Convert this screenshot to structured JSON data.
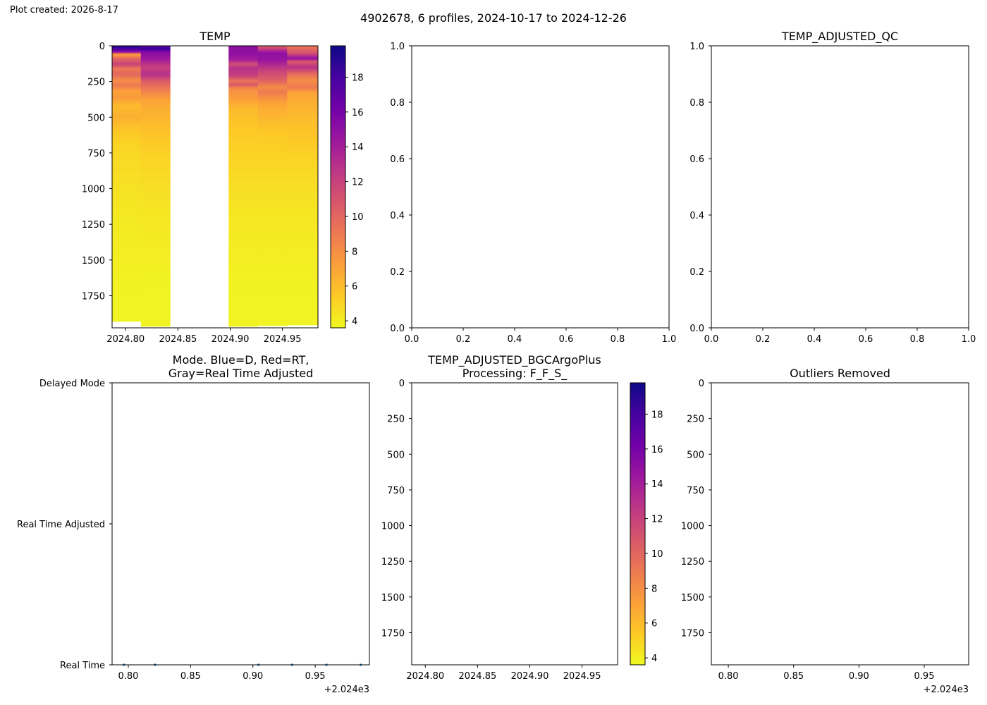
{
  "created_label": "Plot created: 2026-8-17",
  "suptitle": "4902678, 6 profiles, 2024-10-17 to 2024-12-26",
  "colormap": [
    "#f0f921",
    "#fdca26",
    "#fb9f3a",
    "#ed7953",
    "#d8576b",
    "#bd3786",
    "#9c179e",
    "#7201a8",
    "#46039f",
    "#0d0887"
  ],
  "chart_data": [
    {
      "id": "temp",
      "type": "heatmap",
      "title": "TEMP",
      "xticks": [
        2024.8,
        2024.85,
        2024.9,
        2024.95
      ],
      "xtick_labels": [
        "2024.80",
        "2024.85",
        "2024.90",
        "2024.95"
      ],
      "xlim": [
        2024.787,
        2024.984
      ],
      "yticks": [
        0,
        250,
        500,
        750,
        1000,
        1250,
        1500,
        1750
      ],
      "ylim": [
        1975,
        0
      ],
      "colorbar": {
        "ticks": [
          4,
          6,
          8,
          10,
          12,
          14,
          16,
          18
        ],
        "range": [
          3.6,
          19.8
        ]
      },
      "profiles": [
        {
          "x0": 2024.787,
          "x1": 2024.8145,
          "max_depth": 1930,
          "levels": [
            [
              0,
              19.5
            ],
            [
              40,
              16
            ],
            [
              60,
              7
            ],
            [
              90,
              10
            ],
            [
              130,
              12
            ],
            [
              160,
              9
            ],
            [
              200,
              10
            ],
            [
              240,
              8
            ],
            [
              280,
              9
            ],
            [
              320,
              7
            ],
            [
              360,
              7.5
            ],
            [
              420,
              6
            ],
            [
              500,
              6.5
            ],
            [
              600,
              5.5
            ],
            [
              700,
              5
            ],
            [
              800,
              4.8
            ],
            [
              1000,
              4.5
            ],
            [
              1200,
              4.2
            ],
            [
              1500,
              4
            ],
            [
              1800,
              3.8
            ]
          ]
        },
        {
          "x0": 2024.8145,
          "x1": 2024.8425,
          "max_depth": 1965,
          "levels": [
            [
              0,
              16
            ],
            [
              20,
              19
            ],
            [
              40,
              15.5
            ],
            [
              100,
              14
            ],
            [
              150,
              12
            ],
            [
              200,
              13
            ],
            [
              250,
              10.5
            ],
            [
              300,
              9
            ],
            [
              340,
              8
            ],
            [
              380,
              7
            ],
            [
              450,
              6.5
            ],
            [
              550,
              6
            ],
            [
              650,
              5.5
            ],
            [
              800,
              5
            ],
            [
              1000,
              4.6
            ],
            [
              1200,
              4.3
            ],
            [
              1400,
              4.1
            ],
            [
              1700,
              3.8
            ]
          ]
        },
        {
          "x0": 2024.8985,
          "x1": 2024.9265,
          "max_depth": 1965,
          "levels": [
            [
              0,
              15
            ],
            [
              50,
              15
            ],
            [
              100,
              14
            ],
            [
              130,
              11
            ],
            [
              150,
              13
            ],
            [
              210,
              12
            ],
            [
              250,
              9
            ],
            [
              270,
              11
            ],
            [
              300,
              8
            ],
            [
              350,
              7.5
            ],
            [
              450,
              6
            ],
            [
              600,
              5.4
            ],
            [
              800,
              5
            ],
            [
              1000,
              4.6
            ],
            [
              1200,
              4.3
            ],
            [
              1500,
              4
            ],
            [
              1800,
              3.8
            ]
          ]
        },
        {
          "x0": 2024.9265,
          "x1": 2024.9545,
          "max_depth": 1960,
          "levels": [
            [
              0,
              10
            ],
            [
              50,
              15
            ],
            [
              100,
              14.5
            ],
            [
              170,
              12
            ],
            [
              250,
              10
            ],
            [
              290,
              8
            ],
            [
              320,
              9
            ],
            [
              400,
              7
            ],
            [
              460,
              6.5
            ],
            [
              600,
              5.5
            ],
            [
              800,
              5
            ],
            [
              1000,
              4.6
            ],
            [
              1200,
              4.3
            ],
            [
              1500,
              4
            ],
            [
              1800,
              3.8
            ]
          ]
        },
        {
          "x0": 2024.9545,
          "x1": 2024.984,
          "max_depth": 1955,
          "levels": [
            [
              0,
              9
            ],
            [
              50,
              11
            ],
            [
              90,
              15
            ],
            [
              110,
              10.5
            ],
            [
              150,
              13
            ],
            [
              200,
              9.5
            ],
            [
              240,
              8
            ],
            [
              290,
              9
            ],
            [
              330,
              7
            ],
            [
              400,
              6.5
            ],
            [
              500,
              6
            ],
            [
              650,
              5.5
            ],
            [
              800,
              5
            ],
            [
              1000,
              4.6
            ],
            [
              1200,
              4.3
            ],
            [
              1500,
              4
            ],
            [
              1800,
              3.8
            ]
          ]
        }
      ]
    },
    {
      "id": "empty-1",
      "type": "scatter",
      "title": "",
      "xlim": [
        0,
        1
      ],
      "ylim": [
        0,
        1
      ],
      "xticks": [
        0.0,
        0.2,
        0.4,
        0.6,
        0.8,
        1.0
      ],
      "xtick_labels": [
        "0.0",
        "0.2",
        "0.4",
        "0.6",
        "0.8",
        "1.0"
      ],
      "yticks": [
        0.0,
        0.2,
        0.4,
        0.6,
        0.8,
        1.0
      ],
      "ytick_labels": [
        "0.0",
        "0.2",
        "0.4",
        "0.6",
        "0.8",
        "1.0"
      ]
    },
    {
      "id": "temp-adjusted-qc",
      "type": "scatter",
      "title": "TEMP_ADJUSTED_QC",
      "xlim": [
        0,
        1
      ],
      "ylim": [
        0,
        1
      ],
      "xticks": [
        0.0,
        0.2,
        0.4,
        0.6,
        0.8,
        1.0
      ],
      "xtick_labels": [
        "0.0",
        "0.2",
        "0.4",
        "0.6",
        "0.8",
        "1.0"
      ],
      "yticks": [
        0.0,
        0.2,
        0.4,
        0.6,
        0.8,
        1.0
      ],
      "ytick_labels": [
        "0.0",
        "0.2",
        "0.4",
        "0.6",
        "0.8",
        "1.0"
      ]
    },
    {
      "id": "mode",
      "type": "scatter",
      "title_lines": [
        "Mode. Blue=D, Red=RT,",
        "Gray=Real Time Adjusted"
      ],
      "xlim": [
        2024.787,
        2024.9935
      ],
      "xticks": [
        2024.8,
        2024.85,
        2024.9,
        2024.95
      ],
      "xtick_labels": [
        "0.80",
        "0.85",
        "0.90",
        "0.95"
      ],
      "offset_label": "+2.024e3",
      "y_categories": [
        "Real Time",
        "Real Time Adjusted",
        "Delayed Mode"
      ],
      "points": [
        {
          "x": 2024.7965,
          "mode": "Real Time"
        },
        {
          "x": 2024.8215,
          "mode": "Real Time"
        },
        {
          "x": 2024.9045,
          "mode": "Real Time"
        },
        {
          "x": 2024.9315,
          "mode": "Real Time"
        },
        {
          "x": 2024.959,
          "mode": "Real Time"
        },
        {
          "x": 2024.9865,
          "mode": "Real Time"
        }
      ],
      "point_color": "#1f77b4"
    },
    {
      "id": "bgc",
      "type": "heatmap",
      "title_lines": [
        "TEMP_ADJUSTED_BGCArgoPlus",
        "Processing: F_F_S_"
      ],
      "xlim": [
        2024.787,
        2024.984
      ],
      "xticks": [
        2024.8,
        2024.85,
        2024.9,
        2024.95
      ],
      "xtick_labels": [
        "2024.80",
        "2024.85",
        "2024.90",
        "2024.95"
      ],
      "yticks": [
        0,
        250,
        500,
        750,
        1000,
        1250,
        1500,
        1750
      ],
      "ylim": [
        1975,
        0
      ],
      "colorbar": {
        "ticks": [
          4,
          6,
          8,
          10,
          12,
          14,
          16,
          18
        ],
        "range": [
          3.6,
          19.8
        ]
      },
      "profiles": []
    },
    {
      "id": "outliers",
      "type": "scatter",
      "title": "Outliers Removed",
      "xlim": [
        2024.787,
        2024.984
      ],
      "xticks": [
        2024.8,
        2024.85,
        2024.9,
        2024.95
      ],
      "xtick_labels": [
        "0.80",
        "0.85",
        "0.90",
        "0.95"
      ],
      "offset_label": "+2.024e3",
      "yticks": [
        0,
        250,
        500,
        750,
        1000,
        1250,
        1500,
        1750
      ],
      "ylim": [
        1975,
        0
      ]
    }
  ]
}
